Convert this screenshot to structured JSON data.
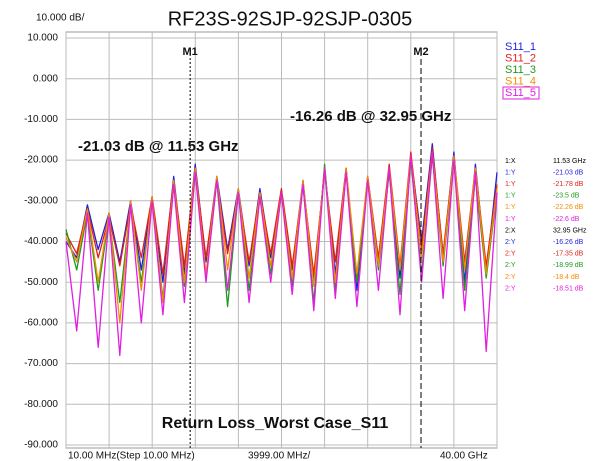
{
  "chart_data": {
    "type": "line",
    "title": "RF23S-92SJP-92SJP-0305",
    "scale_label": "10.000 dB/",
    "x_start_label": "10.00 MHz(Step 10.00 MHz)",
    "x_center_label": "3999.00 MHz/",
    "x_stop_label": "40.00 GHz",
    "annotations": [
      "-21.03 dB @ 11.53 GHz",
      "-16.26 dB @ 32.95 GHz",
      "Return Loss_Worst Case_S11"
    ],
    "xlim": [
      0.01,
      40
    ],
    "ylim": [
      -90,
      10
    ],
    "yticks": [
      {
        "value": 10,
        "label": "10.000"
      },
      {
        "value": 0,
        "label": "0.000"
      },
      {
        "value": -10,
        "label": "-10.000"
      },
      {
        "value": -20,
        "label": "-20.000"
      },
      {
        "value": -30,
        "label": "-30.000"
      },
      {
        "value": -40,
        "label": "-40.000"
      },
      {
        "value": -50,
        "label": "-50.000"
      },
      {
        "value": -60,
        "label": "-60.000"
      },
      {
        "value": -70,
        "label": "-70.000"
      },
      {
        "value": -80,
        "label": "-80.000"
      },
      {
        "value": -90,
        "label": "-90.000"
      }
    ],
    "grid": true,
    "x": [
      0.01,
      1,
      2,
      3,
      4,
      5,
      6,
      7,
      8,
      9,
      10,
      11,
      12,
      13,
      14,
      15,
      16,
      17,
      18,
      19,
      20,
      21,
      22,
      23,
      24,
      25,
      26,
      27,
      28,
      29,
      30,
      31,
      32,
      33,
      34,
      35,
      36,
      37,
      38,
      39,
      40
    ],
    "series": [
      {
        "name": "S11_1",
        "color": "#1f1fe0",
        "values": [
          -40,
          -44,
          -31,
          -42,
          -33,
          -45,
          -30,
          -47,
          -29,
          -50,
          -24,
          -48,
          -21,
          -45,
          -24,
          -42,
          -27,
          -46,
          -27,
          -44,
          -28,
          -47,
          -25,
          -50,
          -22,
          -48,
          -22,
          -52,
          -24,
          -46,
          -22,
          -49,
          -19,
          -40,
          -16,
          -44,
          -18,
          -50,
          -21,
          -48,
          -23
        ]
      },
      {
        "name": "S11_2",
        "color": "#e01f1f",
        "values": [
          -38,
          -43,
          -32,
          -44,
          -34,
          -46,
          -31,
          -44,
          -29,
          -48,
          -25,
          -46,
          -22,
          -44,
          -25,
          -43,
          -28,
          -45,
          -28,
          -43,
          -27,
          -46,
          -26,
          -48,
          -23,
          -45,
          -22,
          -50,
          -24,
          -44,
          -21,
          -46,
          -18,
          -42,
          -17,
          -43,
          -19,
          -45,
          -22,
          -46,
          -26
        ]
      },
      {
        "name": "S11_3",
        "color": "#1f9a1f",
        "values": [
          -37,
          -47,
          -33,
          -52,
          -34,
          -55,
          -31,
          -50,
          -30,
          -54,
          -26,
          -51,
          -23,
          -49,
          -25,
          -56,
          -28,
          -52,
          -29,
          -48,
          -28,
          -51,
          -26,
          -55,
          -21,
          -52,
          -23,
          -50,
          -25,
          -47,
          -23,
          -53,
          -20,
          -48,
          -19,
          -46,
          -20,
          -52,
          -24,
          -49,
          -28
        ]
      },
      {
        "name": "S11_4",
        "color": "#f28c00",
        "values": [
          -39,
          -45,
          -32,
          -50,
          -33,
          -60,
          -30,
          -52,
          -29,
          -55,
          -25,
          -50,
          -22,
          -48,
          -24,
          -47,
          -27,
          -49,
          -28,
          -46,
          -28,
          -49,
          -25,
          -51,
          -22,
          -50,
          -22,
          -48,
          -24,
          -46,
          -22,
          -47,
          -19,
          -44,
          -18,
          -45,
          -19,
          -47,
          -22,
          -48,
          -27
        ]
      },
      {
        "name": "S11_5",
        "color": "#e01fe0",
        "values": [
          -40,
          -62,
          -33,
          -66,
          -34,
          -68,
          -31,
          -60,
          -30,
          -58,
          -26,
          -55,
          -23,
          -50,
          -25,
          -52,
          -28,
          -55,
          -29,
          -50,
          -28,
          -53,
          -26,
          -57,
          -22,
          -54,
          -23,
          -56,
          -25,
          -52,
          -22,
          -58,
          -19,
          -50,
          -18,
          -54,
          -20,
          -57,
          -23,
          -67,
          -28
        ]
      }
    ],
    "markers": [
      {
        "name": "M1",
        "x": 11.53
      },
      {
        "name": "M2",
        "x": 32.95
      }
    ],
    "marker_table": [
      {
        "key": "1:X",
        "value": "11.53 GHz",
        "color": "#000000"
      },
      {
        "key": "1:Y",
        "value": "-21.03 dB",
        "color": "#1f1fe0"
      },
      {
        "key": "1:Y",
        "value": "-21.78 dB",
        "color": "#e01f1f"
      },
      {
        "key": "1:Y",
        "value": "-23.5 dB",
        "color": "#1f9a1f"
      },
      {
        "key": "1:Y",
        "value": "-22.26 dB",
        "color": "#f28c00"
      },
      {
        "key": "1:Y",
        "value": "-22.6 dB",
        "color": "#e01fe0"
      },
      {
        "key": "2:X",
        "value": "32.95 GHz",
        "color": "#000000"
      },
      {
        "key": "2:Y",
        "value": "-16.26 dB",
        "color": "#1f1fe0"
      },
      {
        "key": "2:Y",
        "value": "-17.35 dB",
        "color": "#e01f1f"
      },
      {
        "key": "2:Y",
        "value": "-18.99 dB",
        "color": "#1f9a1f"
      },
      {
        "key": "2:Y",
        "value": "-18.4 dB",
        "color": "#f28c00"
      },
      {
        "key": "2:Y",
        "value": "-18.51 dB",
        "color": "#e01fe0"
      }
    ]
  }
}
